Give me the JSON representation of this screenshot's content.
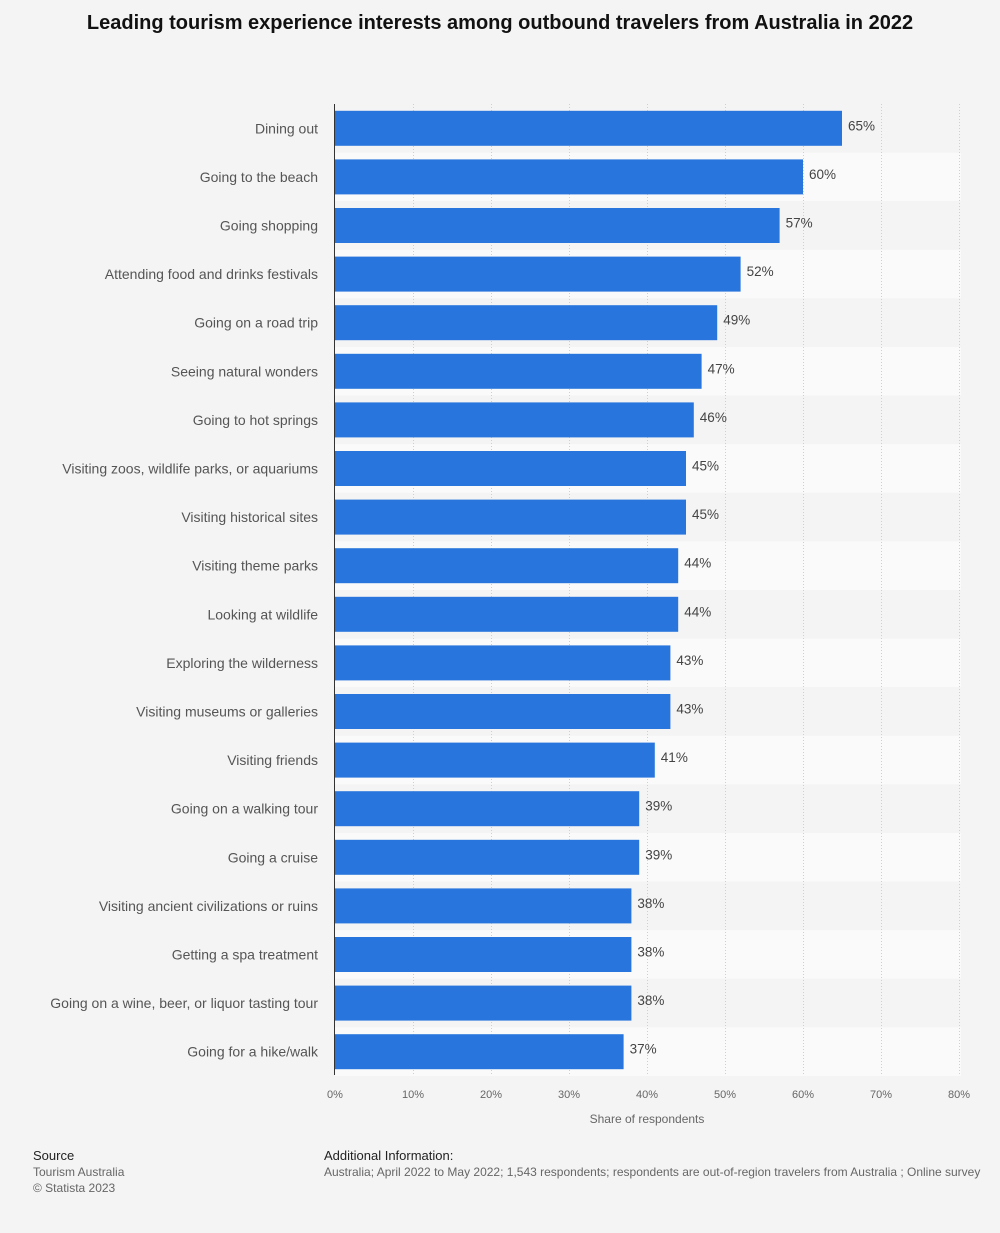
{
  "chart_data": {
    "type": "bar",
    "orientation": "horizontal",
    "title": "Leading tourism experience interests among outbound travelers from Australia in 2022",
    "xlabel": "Share of respondents",
    "ylabel": "",
    "xlim": [
      0,
      80
    ],
    "ticks": [
      "0%",
      "10%",
      "20%",
      "30%",
      "40%",
      "50%",
      "60%",
      "70%",
      "80%"
    ],
    "tick_values": [
      0,
      10,
      20,
      30,
      40,
      50,
      60,
      70,
      80
    ],
    "bar_color": "#2876dd",
    "categories": [
      "Dining out",
      "Going to the beach",
      "Going shopping",
      "Attending food and drinks festivals",
      "Going on a road trip",
      "Seeing natural wonders",
      "Going to hot springs",
      "Visiting zoos, wildlife parks, or aquariums",
      "Visiting historical sites",
      "Visiting theme parks",
      "Looking at wildlife",
      "Exploring the wilderness",
      "Visiting museums or galleries",
      "Visiting friends",
      "Going on a walking tour",
      "Going a cruise",
      "Visiting ancient civilizations or ruins",
      "Getting a spa treatment",
      "Going on a wine, beer, or liquor tasting tour",
      "Going for a hike/walk"
    ],
    "values": [
      65,
      60,
      57,
      52,
      49,
      47,
      46,
      45,
      45,
      44,
      44,
      43,
      43,
      41,
      39,
      39,
      38,
      38,
      38,
      37
    ],
    "value_labels": [
      "65%",
      "60%",
      "57%",
      "52%",
      "49%",
      "47%",
      "46%",
      "45%",
      "45%",
      "44%",
      "44%",
      "43%",
      "43%",
      "41%",
      "39%",
      "39%",
      "38%",
      "38%",
      "38%",
      "37%"
    ]
  },
  "footer": {
    "source_heading": "Source",
    "source_name": "Tourism Australia",
    "copyright": "© Statista 2023",
    "info_heading": "Additional Information:",
    "info_text": "Australia; April 2022 to May 2022; 1,543 respondents; respondents are out-of-region travelers from Australia ; Online survey"
  }
}
